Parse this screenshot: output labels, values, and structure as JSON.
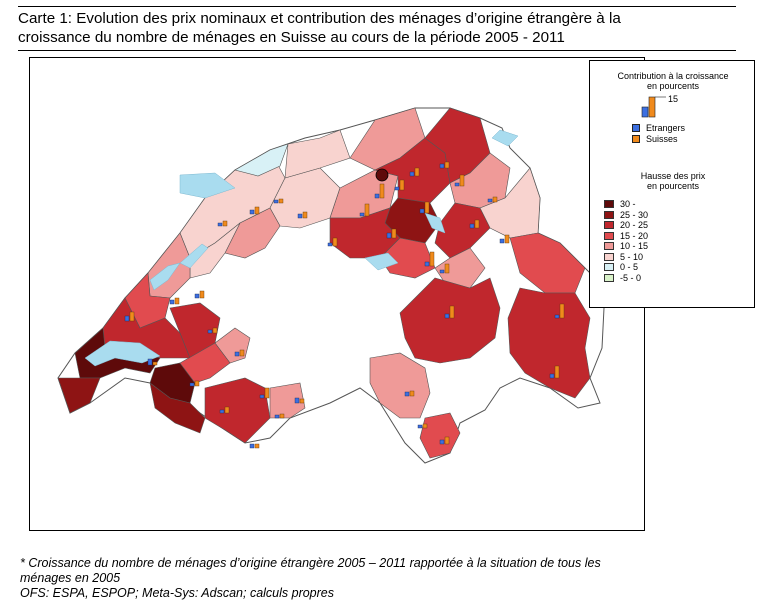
{
  "title": "Carte 1: Evolution des prix nominaux et contribution des ménages d’origine étrangère à la\ncroissance du nombre de ménages en Suisse au cours de la période 2005 - 2011",
  "legend": {
    "contribution_heading": "Contribution à la croissance\nen pourcents",
    "contribution_scale_value": "15",
    "contribution_items": [
      {
        "label": "Etrangers",
        "color": "#3c6fe0"
      },
      {
        "label": "Suisses",
        "color": "#f08a1c"
      }
    ],
    "price_heading": "Hausse des prix\nen pourcents",
    "price_classes": [
      {
        "label": "30 -",
        "color": "#5e0a0a"
      },
      {
        "label": "25 - 30",
        "color": "#8e1414"
      },
      {
        "label": "20 - 25",
        "color": "#c0272d"
      },
      {
        "label": "15 - 20",
        "color": "#e14b4f"
      },
      {
        "label": "10 - 15",
        "color": "#ef9a98"
      },
      {
        "label": "5 - 10",
        "color": "#f8d3cf"
      },
      {
        "label": "0 -  5",
        "color": "#d8f1f6"
      },
      {
        "label": "-5 -  0",
        "color": "#d9f2c9"
      }
    ]
  },
  "colors": {
    "lake": "#a9dcef",
    "border": "#555555",
    "foreign": "#3c6fe0",
    "swiss": "#f08a1c"
  },
  "footnote": "* Croissance du nombre de ménages d’origine étrangère 2005 – 2011 rapportée à la situation de tous les\nménages en  2005\nOFS: ESPA, ESPOP; Meta-Sys: Adscan; calculs propres"
}
